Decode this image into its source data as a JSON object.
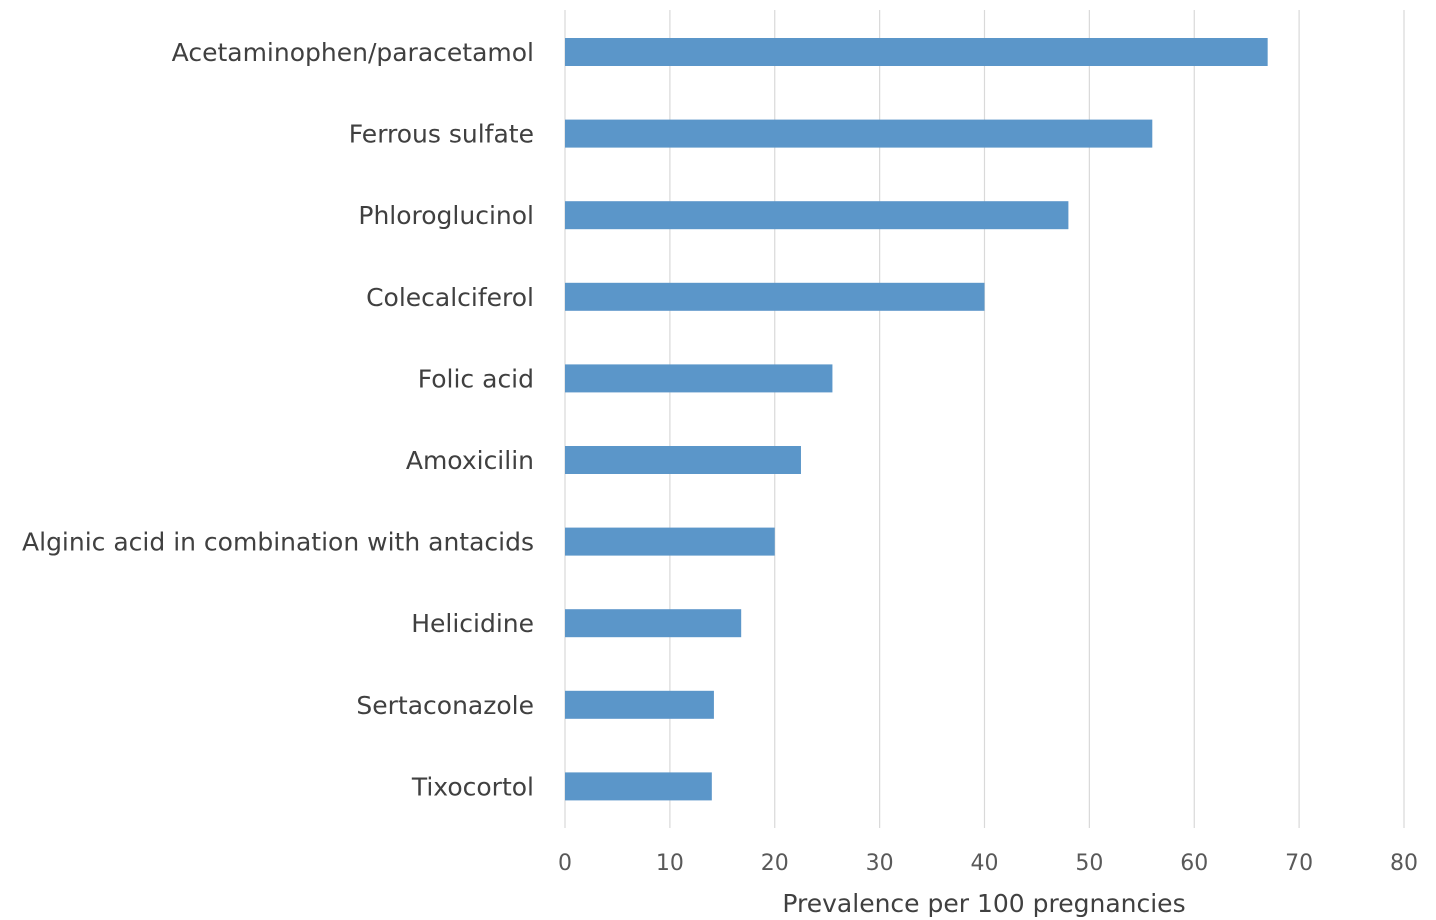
{
  "chart_data": {
    "type": "bar",
    "orientation": "horizontal",
    "categories": [
      "Acetaminophen/paracetamol",
      "Ferrous sulfate",
      "Phloroglucinol",
      "Colecalciferol",
      "Folic acid",
      "Amoxicilin",
      "Alginic acid in combination with antacids",
      "Helicidine",
      "Sertaconazole",
      "Tixocortol"
    ],
    "values": [
      67.0,
      56.0,
      48.0,
      40.0,
      25.5,
      22.5,
      20.0,
      16.8,
      14.2,
      14.0
    ],
    "title": "",
    "xlabel": "Prevalence per 100 pregnancies",
    "ylabel": "",
    "xlim": [
      0,
      80
    ],
    "xticks": [
      "0",
      "10",
      "20",
      "30",
      "40",
      "50",
      "60",
      "70",
      "80"
    ],
    "grid": true,
    "bar_color": "#5b96c9",
    "legend": "none"
  }
}
